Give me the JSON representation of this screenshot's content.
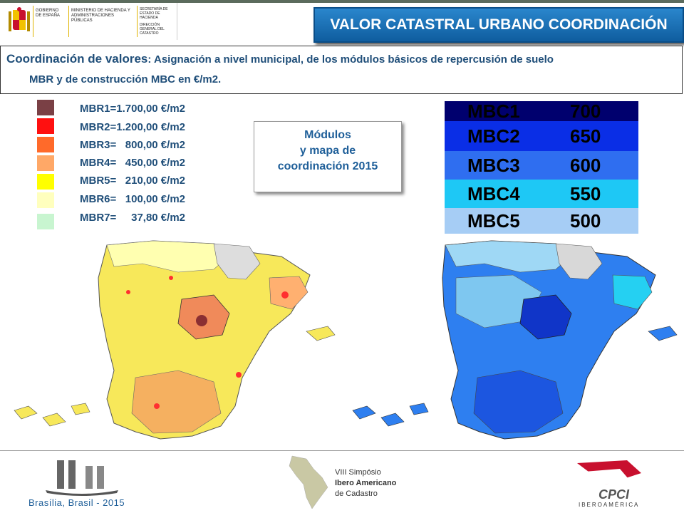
{
  "header": {
    "gov_logo_text": {
      "line1": "GOBIERNO DE ESPAÑA",
      "line2": "MINISTERIO DE HACIENDA Y ADMINISTRACIONES PÚBLICAS",
      "line3": "SECRETARÍA DE ESTADO DE HACIENDA",
      "line4": "DIRECCIÓN GENERAL DEL CATASTRO"
    },
    "title": "VALOR CATASTRAL URBANO COORDINACIÓN"
  },
  "description": {
    "lead": "Coordinación de valores",
    "rest": ": Asignación a nivel municipal, de los módulos básicos de repercusión de suelo",
    "line2": "MBR y de construcción MBC en €/m2."
  },
  "mbr_legend": [
    {
      "label": "MBR1=1.700,00 €/m2",
      "color": "#7a4045"
    },
    {
      "label": "MBR2=1.200,00 €/m2",
      "color": "#ff1010"
    },
    {
      "label": "MBR3=   800,00 €/m2",
      "color": "#ff6a2a"
    },
    {
      "label": "MBR4=   450,00 €/m2",
      "color": "#ffa867"
    },
    {
      "label": "MBR5=   210,00 €/m2",
      "color": "#ffff00"
    },
    {
      "label": "MBR6=   100,00 €/m2",
      "color": "#ffffbe"
    },
    {
      "label": "MBR7=     37,80 €/m2",
      "color": "#c8f5d0"
    }
  ],
  "modulos_box": {
    "line1": "Módulos",
    "line2": "y mapa de",
    "line3": "coordinación 2015"
  },
  "mbc_table": [
    {
      "name": "MBC1",
      "value": "700",
      "color": "#00006e"
    },
    {
      "name": "MBC2",
      "value": "650",
      "color": "#0a2ee6"
    },
    {
      "name": "MBC3",
      "value": "600",
      "color": "#2f6ef0"
    },
    {
      "name": "MBC4",
      "value": "550",
      "color": "#1ec8f5"
    },
    {
      "name": "MBC5",
      "value": "500",
      "color": "#a6cdf5"
    }
  ],
  "footer": {
    "caption": "Brasília, Brasil - 2015",
    "event_line1": "VIII Simpósio",
    "event_line2": "Ibero Americano",
    "event_line3": "de Cadastro",
    "right_logo_text": "CPCI",
    "right_logo_sub": "IBEROAMÉRICA"
  }
}
